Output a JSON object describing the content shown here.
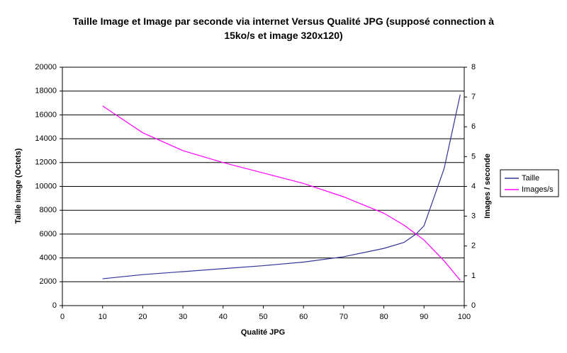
{
  "chart_data": {
    "type": "line",
    "title": "Taille Image et Image par seconde via internet Versus Qualité JPG (supposé connection à 15ko/s et image 320x120)",
    "x_label": "Qualité JPG",
    "y_label": "Taille image (Octets)",
    "y2_label": "Images / seconde",
    "x": [
      10,
      20,
      30,
      40,
      50,
      60,
      70,
      80,
      85,
      88,
      90,
      95,
      99
    ],
    "series": [
      {
        "name": "Taille",
        "color": "#333399",
        "values": [
          2250,
          2600,
          2850,
          3100,
          3350,
          3650,
          4100,
          4800,
          5300,
          6000,
          6700,
          11500,
          17700
        ]
      },
      {
        "name": "Images/s",
        "color": "#ff00ff",
        "axis": "y2",
        "values": [
          6.7,
          5.8,
          5.2,
          4.8,
          4.45,
          4.1,
          3.65,
          3.1,
          2.7,
          2.4,
          2.2,
          1.5,
          0.85
        ]
      }
    ],
    "xlim": [
      0,
      100
    ],
    "xticks": [
      0,
      10,
      20,
      30,
      40,
      50,
      60,
      70,
      80,
      90,
      100
    ],
    "ylim": [
      0,
      20000
    ],
    "yticks": [
      0,
      2000,
      4000,
      6000,
      8000,
      10000,
      12000,
      14000,
      16000,
      18000,
      20000
    ],
    "y2lim": [
      0,
      8
    ],
    "y2ticks": [
      0,
      1,
      2,
      3,
      4,
      5,
      6,
      7,
      8
    ],
    "grid": true,
    "legend": "right"
  }
}
